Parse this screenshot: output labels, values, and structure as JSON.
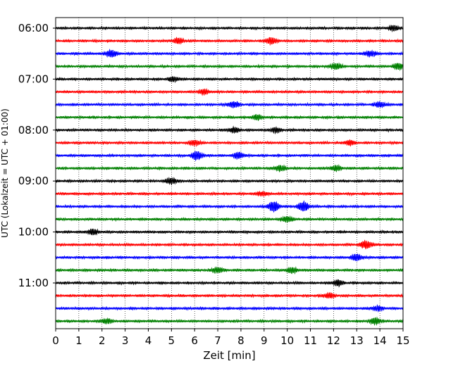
{
  "chart_data": {
    "type": "line",
    "title": "",
    "xlabel": "Zeit  [min]",
    "ylabel": "UTC (Lokalzeit = UTC + 01:00)",
    "xlim": [
      0,
      15
    ],
    "x_ticks": [
      "0",
      "1",
      "2",
      "3",
      "4",
      "5",
      "6",
      "7",
      "8",
      "9",
      "10",
      "11",
      "12",
      "13",
      "14",
      "15"
    ],
    "y_ticks": [
      {
        "label": "06:00",
        "trace_index": 0
      },
      {
        "label": "07:00",
        "trace_index": 4
      },
      {
        "label": "08:00",
        "trace_index": 8
      },
      {
        "label": "09:00",
        "trace_index": 12
      },
      {
        "label": "10:00",
        "trace_index": 16
      },
      {
        "label": "11:00",
        "trace_index": 20
      }
    ],
    "grid": "vertical dotted at each minute",
    "trace_interval_minutes": 15,
    "color_cycle": [
      "#000000",
      "#ff0000",
      "#0000ff",
      "#008000"
    ],
    "series": [
      {
        "start": "06:00",
        "events": [
          [
            14.6,
            1.0
          ]
        ]
      },
      {
        "start": "06:15",
        "events": [
          [
            5.3,
            1.2
          ],
          [
            9.3,
            1.4
          ]
        ]
      },
      {
        "start": "06:30",
        "events": [
          [
            2.4,
            1.6
          ],
          [
            13.6,
            1.2
          ]
        ]
      },
      {
        "start": "06:45",
        "events": [
          [
            12.1,
            1.3
          ],
          [
            14.8,
            1.2
          ]
        ]
      },
      {
        "start": "07:00",
        "events": [
          [
            5.1,
            0.9
          ]
        ]
      },
      {
        "start": "07:15",
        "events": [
          [
            6.4,
            1.0
          ]
        ]
      },
      {
        "start": "07:30",
        "events": [
          [
            7.7,
            1.3
          ],
          [
            14.0,
            1.1
          ]
        ]
      },
      {
        "start": "07:45",
        "events": [
          [
            8.7,
            1.0
          ]
        ]
      },
      {
        "start": "08:00",
        "events": [
          [
            7.7,
            1.0
          ],
          [
            9.5,
            0.9
          ]
        ]
      },
      {
        "start": "08:15",
        "events": [
          [
            6.0,
            1.1
          ],
          [
            12.7,
            0.9
          ]
        ]
      },
      {
        "start": "08:30",
        "events": [
          [
            6.1,
            1.8
          ],
          [
            7.9,
            1.3
          ]
        ]
      },
      {
        "start": "08:45",
        "events": [
          [
            9.7,
            1.2
          ],
          [
            12.1,
            1.0
          ]
        ]
      },
      {
        "start": "09:00",
        "events": [
          [
            5.0,
            1.3
          ]
        ]
      },
      {
        "start": "09:15",
        "events": [
          [
            8.9,
            0.8
          ]
        ]
      },
      {
        "start": "09:30",
        "events": [
          [
            9.4,
            2.3
          ],
          [
            10.7,
            2.2
          ]
        ]
      },
      {
        "start": "09:45",
        "events": [
          [
            10.0,
            1.1
          ]
        ]
      },
      {
        "start": "10:00",
        "events": [
          [
            1.6,
            1.1
          ]
        ]
      },
      {
        "start": "10:15",
        "events": [
          [
            13.4,
            1.7
          ]
        ]
      },
      {
        "start": "10:30",
        "events": [
          [
            13.0,
            1.3
          ]
        ]
      },
      {
        "start": "10:45",
        "events": [
          [
            7.0,
            1.2
          ],
          [
            10.2,
            1.2
          ]
        ]
      },
      {
        "start": "11:00",
        "events": [
          [
            12.2,
            1.2
          ]
        ]
      },
      {
        "start": "11:15",
        "events": [
          [
            11.8,
            1.0
          ]
        ]
      },
      {
        "start": "11:30",
        "events": [
          [
            13.9,
            1.0
          ]
        ]
      },
      {
        "start": "11:45",
        "events": [
          [
            13.8,
            1.3
          ],
          [
            2.2,
            1.0
          ]
        ]
      }
    ]
  }
}
